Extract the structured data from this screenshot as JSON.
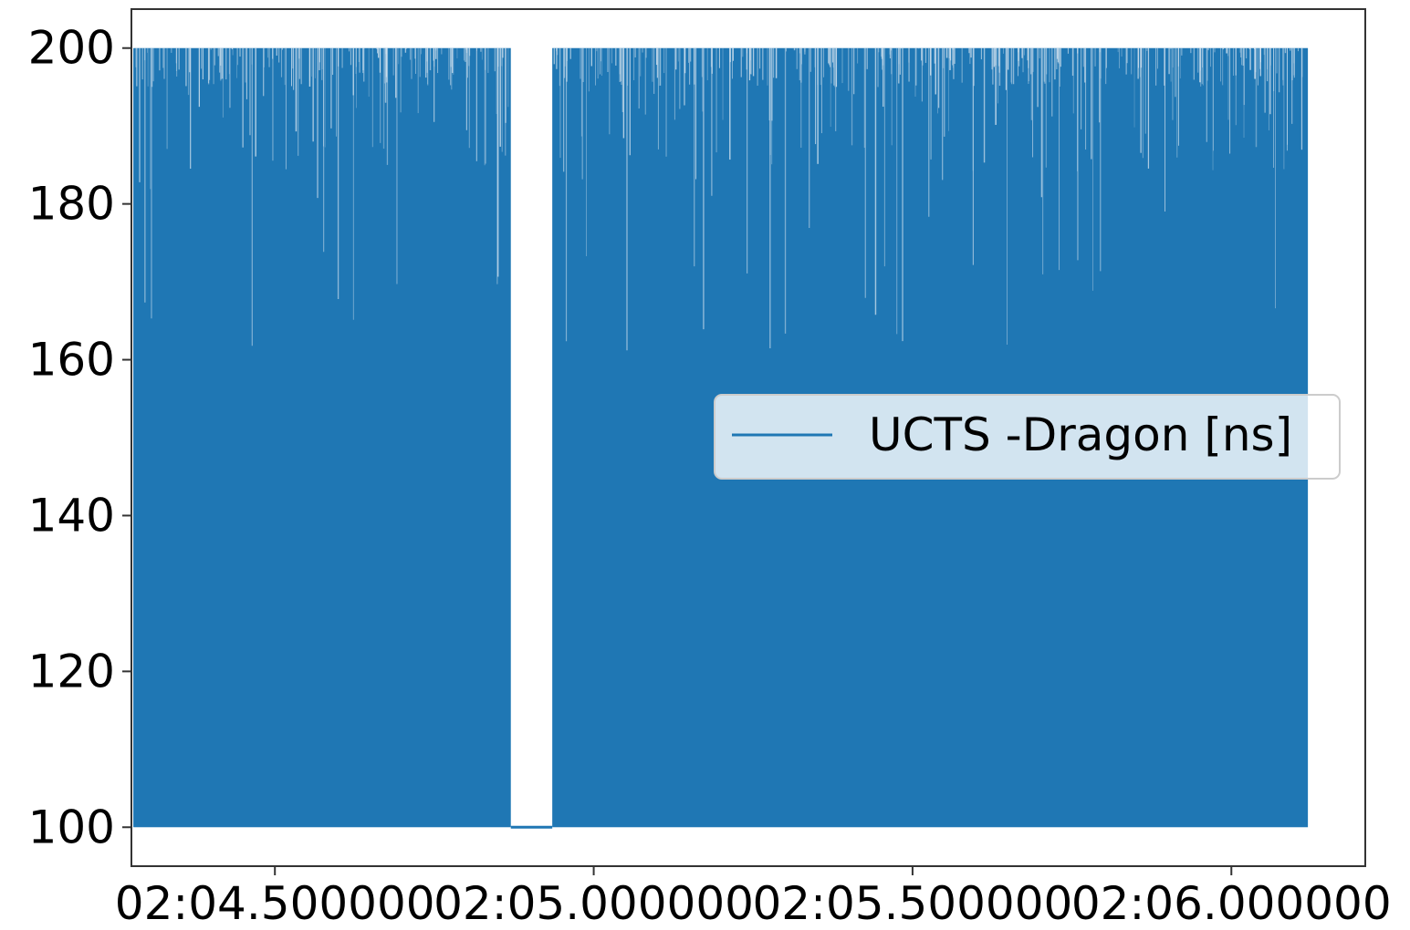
{
  "chart_data": {
    "type": "line",
    "title": "",
    "xlabel": "",
    "ylabel": "",
    "xlim": [
      "02:04.275",
      "02:06.210"
    ],
    "ylim": [
      95,
      205
    ],
    "x_ticks": [
      {
        "value": "02:04.500000",
        "label": "02:04.500000"
      },
      {
        "value": "02:05.000000",
        "label": "02:05.000000"
      },
      {
        "value": "02:05.500000",
        "label": "02:05.500000"
      },
      {
        "value": "02:06.000000",
        "label": "02:06.000000"
      }
    ],
    "y_ticks": [
      100,
      120,
      140,
      160,
      180,
      200
    ],
    "grid": false,
    "legend": {
      "position": "center-right",
      "entries": [
        "UCTS -Dragon [ns]"
      ]
    },
    "series": [
      {
        "name": "UCTS -Dragon [ns]",
        "color": "#1f77b4",
        "style": "dense oscillating line between 100 and 200",
        "segments": [
          {
            "x_start": "02:04.278",
            "x_end": "02:04.870",
            "y_min": 100,
            "y_max": 200
          },
          {
            "x_start": "02:04.935",
            "x_end": "02:06.120",
            "y_min": 100,
            "y_max": 200
          }
        ],
        "gap": {
          "x_start": "02:04.870",
          "x_end": "02:04.935",
          "y": 100
        }
      }
    ]
  }
}
